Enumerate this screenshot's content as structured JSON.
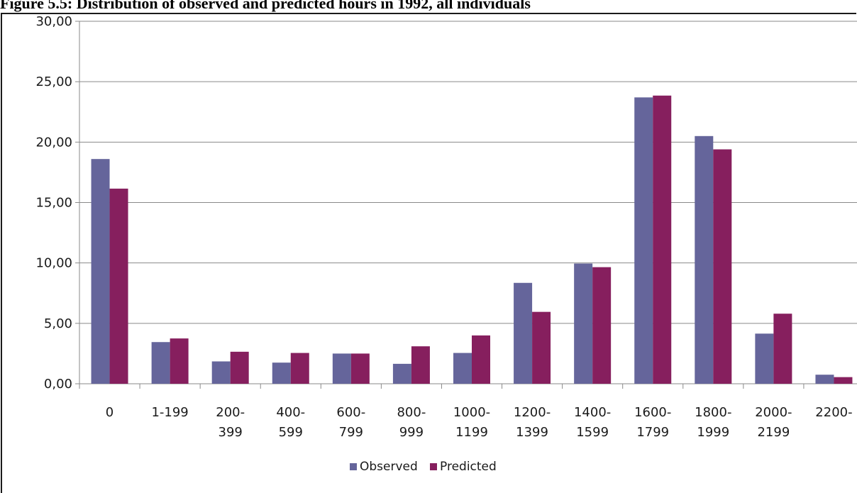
{
  "figure": {
    "title": "Figure 5.5: Distribution of observed and predicted hours in 1992, all individuals"
  },
  "chart_data": {
    "type": "bar",
    "title": "Figure 5.5: Distribution of observed and predicted hours in 1992, all individuals",
    "xlabel": "",
    "ylabel": "",
    "ylim": [
      0,
      30
    ],
    "yticks": [
      "0,00",
      "5,00",
      "10,00",
      "15,00",
      "20,00",
      "25,00",
      "30,00"
    ],
    "grid": true,
    "legend_position": "bottom",
    "categories": [
      [
        "0"
      ],
      [
        "1-199"
      ],
      [
        "200-",
        "399"
      ],
      [
        "400-",
        "599"
      ],
      [
        "600-",
        "799"
      ],
      [
        "800-",
        "999"
      ],
      [
        "1000-",
        "1199"
      ],
      [
        "1200-",
        "1399"
      ],
      [
        "1400-",
        "1599"
      ],
      [
        "1600-",
        "1799"
      ],
      [
        "1800-",
        "1999"
      ],
      [
        "2000-",
        "2199"
      ],
      [
        "2200-"
      ]
    ],
    "series": [
      {
        "name": "Observed",
        "color": "#65659b",
        "values": [
          18.6,
          3.45,
          1.85,
          1.75,
          2.5,
          1.65,
          2.55,
          8.35,
          9.95,
          23.7,
          20.5,
          4.15,
          0.75
        ]
      },
      {
        "name": "Predicted",
        "color": "#861f5e",
        "values": [
          16.15,
          3.75,
          2.65,
          2.55,
          2.5,
          3.1,
          4.0,
          5.95,
          9.65,
          23.85,
          19.4,
          5.8,
          0.55
        ]
      }
    ]
  }
}
